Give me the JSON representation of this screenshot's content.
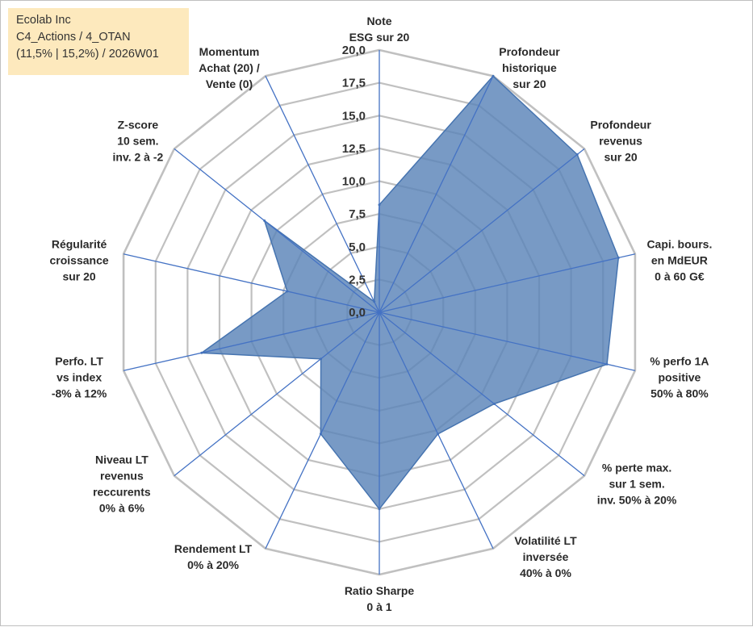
{
  "header": {
    "line1": "Ecolab Inc",
    "line2": "C4_Actions / 4_OTAN",
    "line3": "(11,5% | 15,2%) / 2026W01"
  },
  "colors": {
    "fill": "#5a84b8",
    "stroke": "#4674b0",
    "spokes": "#4472c4",
    "grid": "#c0c0c0",
    "legend_bg": "#fde9bd"
  },
  "chart_data": {
    "type": "radar",
    "title": "",
    "rmin": 0,
    "rmax": 20,
    "ticks": [
      "0,0",
      "2,5",
      "5,0",
      "7,5",
      "10,0",
      "12,5",
      "15,0",
      "17,5",
      "20,0"
    ],
    "tick_values": [
      0,
      2.5,
      5,
      7.5,
      10,
      12.5,
      15,
      17.5,
      20
    ],
    "categories": [
      [
        "Note",
        "ESG sur 20"
      ],
      [
        "Profondeur",
        "historique",
        "sur 20"
      ],
      [
        "Profondeur",
        "revenus",
        "sur 20"
      ],
      [
        "Capi. bours.",
        "en MdEUR",
        "0 à 60 G€"
      ],
      [
        "% perfo 1A",
        "positive",
        "50% à 80%"
      ],
      [
        "% perte max.",
        "sur 1 sem.",
        "inv. 50% à 20%"
      ],
      [
        "Volatilité LT",
        "inversée",
        "40% à 0%"
      ],
      [
        "Ratio Sharpe",
        "0 à 1"
      ],
      [
        "Rendement LT",
        "0% à 20%"
      ],
      [
        "Niveau LT",
        "revenus",
        "reccurents",
        "0% à 6%"
      ],
      [
        "Perfo. LT",
        "vs index",
        "-8% à 12%"
      ],
      [
        "Régularité",
        "croissance",
        "sur 20"
      ],
      [
        "Z-score",
        "10 sem.",
        "inv. 2 à -2"
      ],
      [
        "Momentum",
        "Achat (20) /",
        "Vente (0)"
      ]
    ],
    "series": [
      {
        "name": "Ecolab Inc",
        "values": [
          8.2,
          20.0,
          19.3,
          18.7,
          17.8,
          11.2,
          10.3,
          15.0,
          10.3,
          5.7,
          13.9,
          7.2,
          11.2,
          0.9
        ]
      }
    ]
  }
}
